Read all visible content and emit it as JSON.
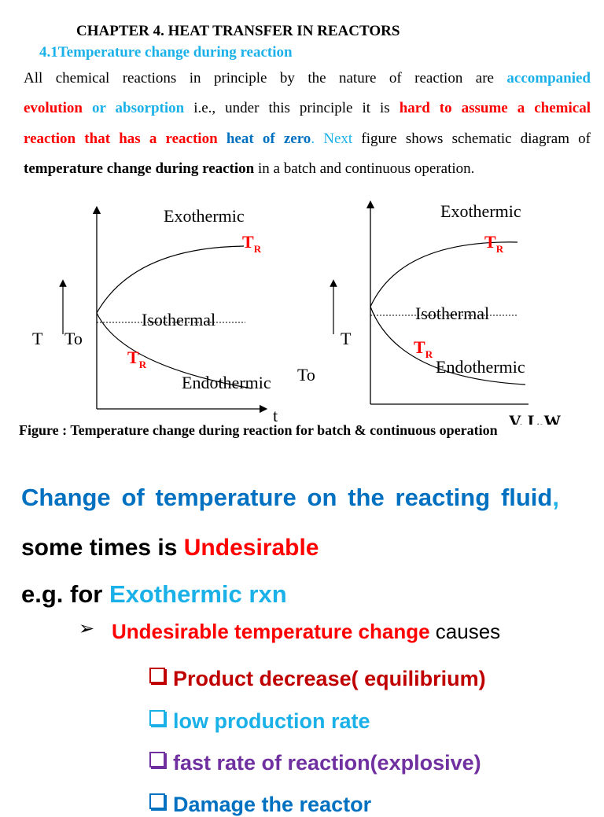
{
  "header": {
    "chapter_title": "CHAPTER 4. HEAT TRANSFER IN REACTORS",
    "section_heading": "4.1Temperature change during reaction"
  },
  "paragraph": {
    "l1_a": "All chemical reactions in principle by the nature of reaction are ",
    "l1_b": "accompanied",
    "l2_a": "evolution",
    "l2_b": " or absorption",
    "l2_c": " i.e., under this principle it is ",
    "l2_d": "hard to assume a chemical",
    "l3_a": "reaction that has a reaction",
    "l3_b": " heat of zero",
    "l3_c": ". Next",
    "l3_d": " figure shows schematic diagram of",
    "l4_a": "temperature change during reaction",
    "l4_b": " in a batch and continuous operation."
  },
  "diagram": {
    "left": {
      "exothermic": "Exothermic",
      "isothermal": "Isothermal",
      "endothermic": "Endothermic",
      "tr_top": "T",
      "tr_top_sub": "R",
      "tr_bottom": "T",
      "tr_bottom_sub": "R",
      "t_label": "T",
      "to_label": "To",
      "x_axis": "t"
    },
    "right": {
      "exothermic": "Exothermic",
      "isothermal": "Isothermal",
      "endothermic": "Endothermic",
      "tr_top": "T",
      "tr_top_sub": "R",
      "tr_bottom": "T",
      "tr_bottom_sub": "R",
      "t_label": "T",
      "to_label": "To",
      "x_axis": "V, L,W"
    },
    "colors": {
      "tr": "#ff0000",
      "line": "#000000"
    }
  },
  "figure_caption": "Figure : Temperature change during reaction for batch & continuous operation",
  "body": {
    "line1_a": "Change of temperature on the reacting fluid",
    "line1_b": ",",
    "line2_a": "some times is ",
    "line2_b": "Undesirable",
    "line3_a": "e.g.  for ",
    "line3_b": "Exothermic rxn",
    "bullet_icon": "arrow-bullet",
    "bullet_a": "Undesirable temperature change",
    "bullet_b": " causes",
    "subs": [
      "Product decrease( equilibrium)",
      "low production rate",
      "fast rate of reaction(explosive)",
      "Damage the reactor"
    ]
  },
  "colors": {
    "accent_blue": "#1ab0e8",
    "navy_blue": "#0070c0",
    "red": "#ff0000",
    "dark_red": "#c00000",
    "purple": "#7030a0"
  }
}
